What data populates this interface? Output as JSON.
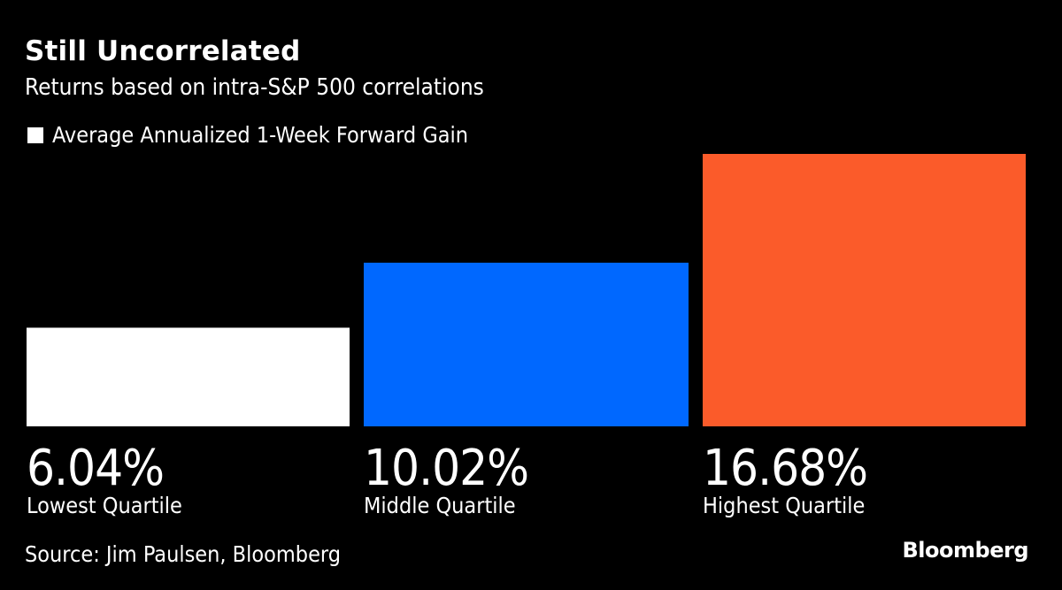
{
  "header": {
    "title": "Still Uncorrelated",
    "subtitle": "Returns based on intra-S&P 500 correlations"
  },
  "legend": {
    "label": "Average Annualized 1-Week Forward Gain",
    "color": "#ffffff"
  },
  "chart_data": {
    "type": "bar",
    "title": "Still Uncorrelated",
    "subtitle": "Returns based on intra-S&P 500 correlations",
    "categories": [
      "Lowest Quartile",
      "Middle Quartile",
      "Highest Quartile"
    ],
    "series": [
      {
        "name": "Average Annualized 1-Week Forward Gain",
        "values": [
          6.04,
          10.02,
          16.68
        ]
      }
    ],
    "value_labels": [
      "6.04%",
      "10.02%",
      "16.68%"
    ],
    "colors": [
      "#ffffff",
      "#0068ff",
      "#fb5b2a"
    ],
    "xlabel": "",
    "ylabel": "",
    "ylim": [
      0,
      16.68
    ],
    "grid": false,
    "legend_position": "top-left"
  },
  "footer": {
    "source": "Source: Jim Paulsen, Bloomberg",
    "logo": "Bloomberg"
  }
}
